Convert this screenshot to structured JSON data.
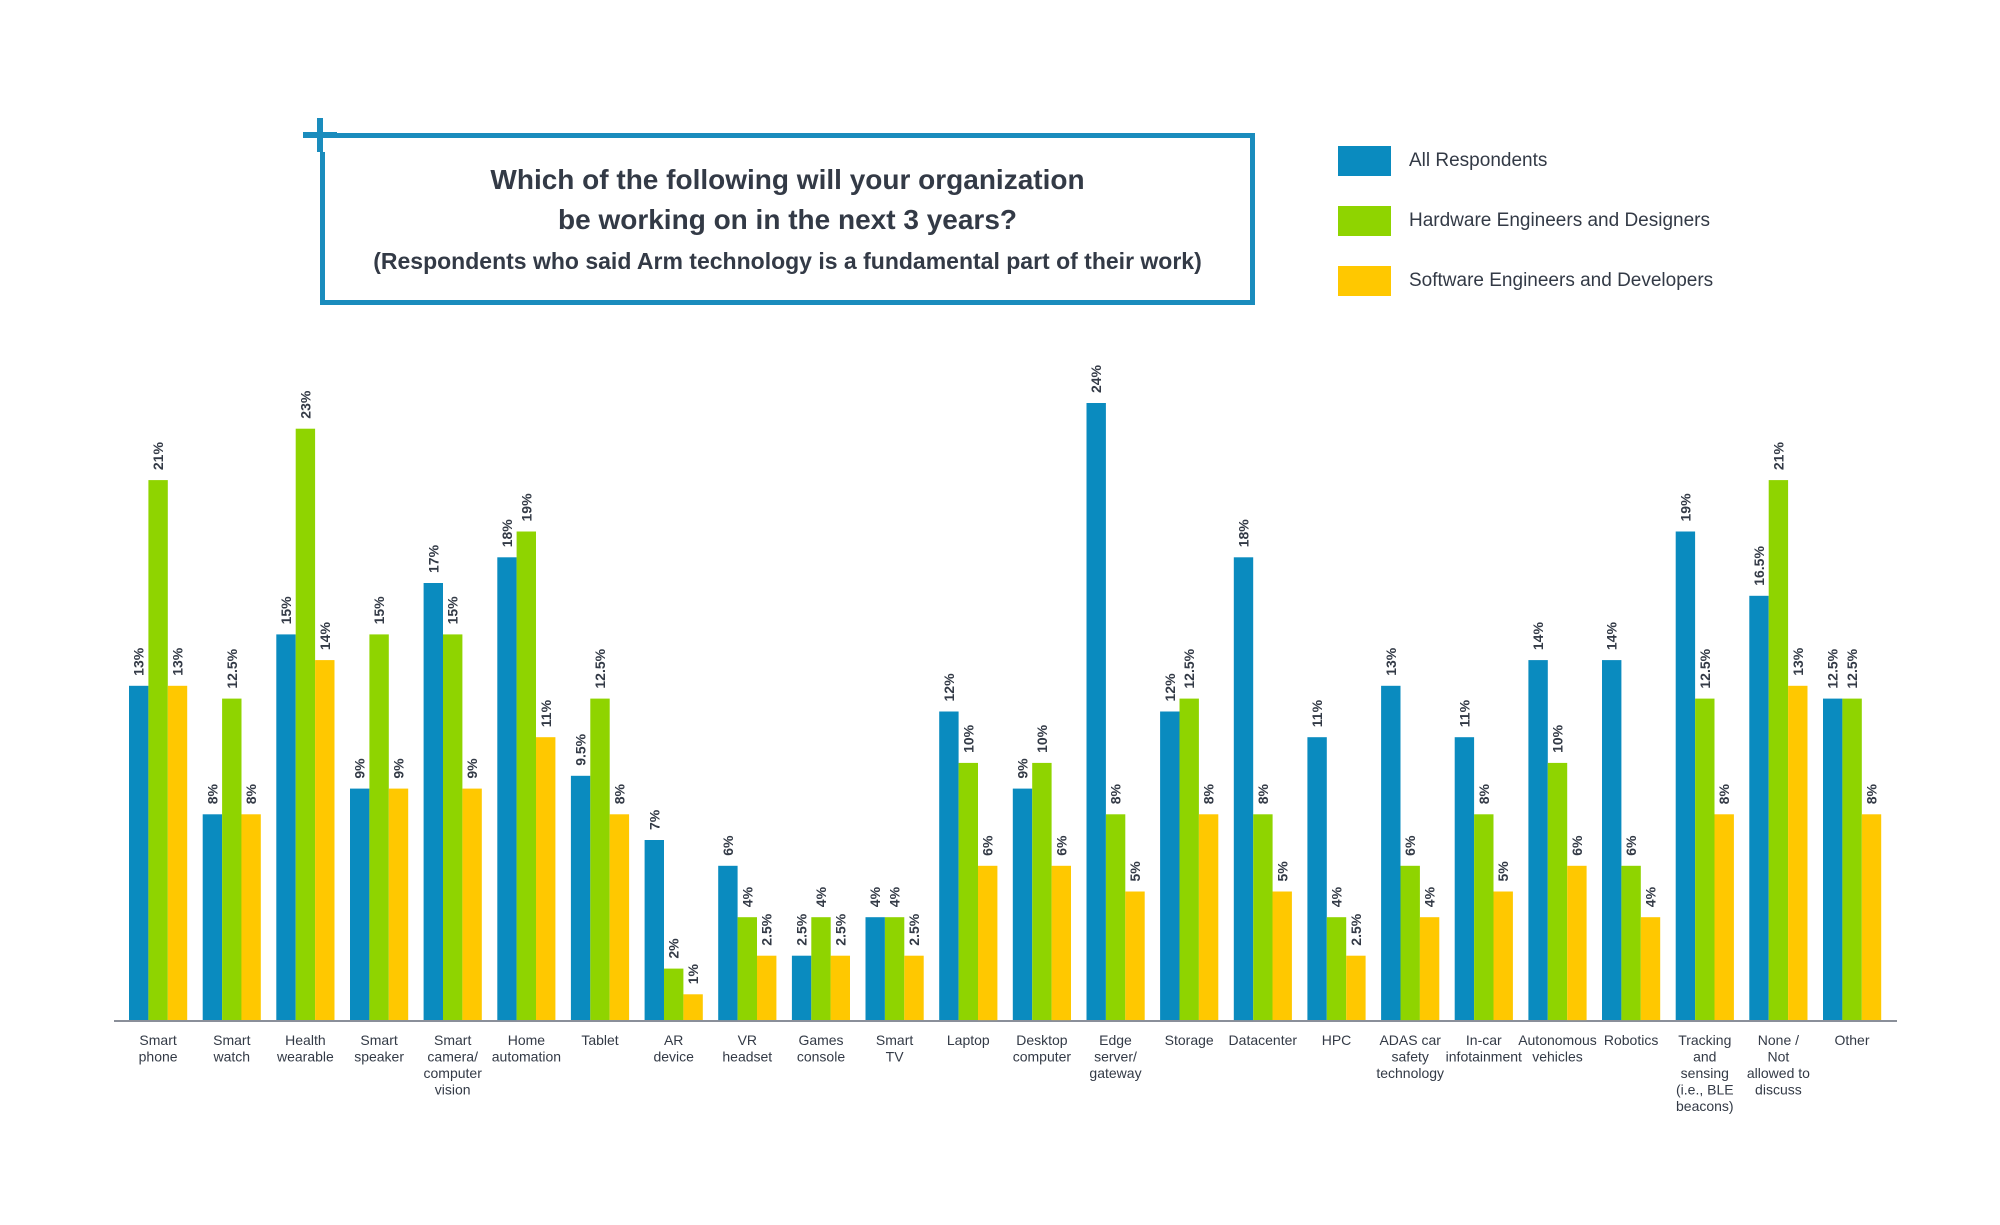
{
  "title": {
    "line1": "Which of the following will your organization",
    "line2": "be working on in the next 3 years?",
    "subtitle": "(Respondents who said Arm technology is a fundamental part of their work)"
  },
  "legend": [
    {
      "label": "All Respondents",
      "color": "#0a8bbf"
    },
    {
      "label": "Hardware Engineers and Designers",
      "color": "#8fd400"
    },
    {
      "label": "Software Engineers and Developers",
      "color": "#ffc800"
    }
  ],
  "chart_data": {
    "type": "bar",
    "categories": [
      "Smart\nphone",
      "Smart\nwatch",
      "Health\nwearable",
      "Smart\nspeaker",
      "Smart\ncamera/\ncomputer\nvision",
      "Home\nautomation",
      "Tablet",
      "AR\ndevice",
      "VR\nheadset",
      "Games\nconsole",
      "Smart\nTV",
      "Laptop",
      "Desktop\ncomputer",
      "Edge\nserver/\ngateway",
      "Storage",
      "Datacenter",
      "HPC",
      "ADAS car\nsafety\ntechnology",
      "In-car\ninfotainment",
      "Autonomous\nvehicles",
      "Robotics",
      "Tracking\nand\nsensing\n(i.e., BLE\nbeacons)",
      "None /\nNot\nallowed to\ndiscuss",
      "Other"
    ],
    "series": [
      {
        "name": "All Respondents",
        "color": "#0a8bbf",
        "values": [
          13,
          8,
          15,
          9,
          17,
          18,
          9.5,
          7,
          6,
          2.5,
          4,
          12,
          9,
          24,
          12,
          18,
          11,
          13,
          11,
          14,
          14,
          19,
          16.5,
          12.5
        ],
        "labels": [
          "13%",
          "8%",
          "15%",
          "9%",
          "17%",
          "18%",
          "9.5%",
          "7%",
          "6%",
          "2.5%",
          "4%",
          "12%",
          "9%",
          "24%",
          "12%",
          "18%",
          "11%",
          "13%",
          "11%",
          "14%",
          "14%",
          "19%",
          "16.5%",
          "12.5%"
        ]
      },
      {
        "name": "Hardware Engineers and Designers",
        "color": "#8fd400",
        "values": [
          21,
          12.5,
          23,
          15,
          15,
          19,
          12.5,
          2,
          4,
          4,
          4,
          10,
          10,
          8,
          12.5,
          8,
          4,
          6,
          8,
          10,
          6,
          12.5,
          21,
          12.5
        ],
        "labels": [
          "21%",
          "12.5%",
          "23%",
          "15%",
          "15%",
          "19%",
          "12.5%",
          "2%",
          "4%",
          "4%",
          "4%",
          "10%",
          "10%",
          "8%",
          "12.5%",
          "8%",
          "4%",
          "6%",
          "8%",
          "10%",
          "6%",
          "12.5%",
          "21%",
          "12.5%"
        ]
      },
      {
        "name": "Software Engineers and Developers",
        "color": "#ffc800",
        "values": [
          13,
          8,
          14,
          9,
          9,
          11,
          8,
          1,
          2.5,
          2.5,
          2.5,
          6,
          6,
          5,
          8,
          5,
          2.5,
          4,
          5,
          6,
          4,
          8,
          13,
          8
        ],
        "labels": [
          "13%",
          "8%",
          "14%",
          "9%",
          "9%",
          "11%",
          "8%",
          "1%",
          "2.5%",
          "2.5%",
          "2.5%",
          "6%",
          "6%",
          "5%",
          "8%",
          "5%",
          "2.5%",
          "4%",
          "5%",
          "6%",
          "4%",
          "8%",
          "13%",
          "8%"
        ]
      }
    ],
    "ylim": [
      0,
      24
    ],
    "grid": false,
    "legend_position": "top-right"
  }
}
